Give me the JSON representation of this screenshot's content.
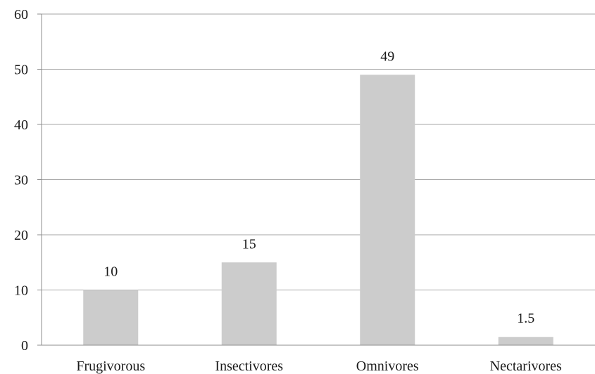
{
  "chart_data": {
    "type": "bar",
    "categories": [
      "Frugivorous",
      "Insectivores",
      "Omnivores",
      "Nectarivores"
    ],
    "values": [
      10,
      15,
      49,
      1.5
    ],
    "value_labels": [
      "10",
      "15",
      "49",
      "1.5"
    ],
    "title": "",
    "xlabel": "",
    "ylabel": "",
    "ylim": [
      0,
      60
    ],
    "yticks": [
      0,
      10,
      20,
      30,
      40,
      50,
      60
    ],
    "grid": true,
    "legend": "none",
    "colors": {
      "bar": "#cccccc",
      "grid": "#a6a6a6",
      "axis": "#8c8c8c",
      "text": "#1a1a1a"
    }
  }
}
